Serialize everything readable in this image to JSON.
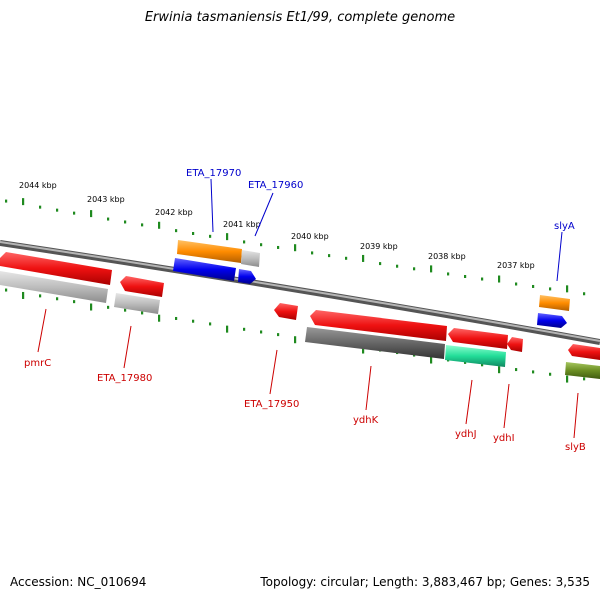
{
  "title": "Erwinia tasmaniensis Et1/99, complete genome",
  "footer": {
    "accession": "Accession: NC_010694",
    "topology": "Topology: circular; Length: 3,883,467 bp; Genes: 3,535"
  },
  "colors": {
    "backbone": "#7a7a7a",
    "tick": "#1f8a1f",
    "label_top": "#0000cc",
    "label_bottom": "#cc0000",
    "red": "#ee1111",
    "grey": "#bdbdbd",
    "dark_grey": "#666666",
    "orange": "#ff8c00",
    "blue": "#0000ee",
    "teal": "#22dd99",
    "olive": "#6b8e23"
  },
  "scale_labels": [
    "2044 kbp",
    "2043 kbp",
    "2042 kbp",
    "2041 kbp",
    "2040 kbp",
    "2039 kbp",
    "2038 kbp",
    "2037 kbp"
  ],
  "gene_labels_top": [
    "ETA_17970",
    "ETA_17960",
    "slyA"
  ],
  "gene_labels_bottom": [
    "pmrC",
    "ETA_17980",
    "ETA_17950",
    "ydhK",
    "ydhJ",
    "ydhI",
    "slyB"
  ]
}
